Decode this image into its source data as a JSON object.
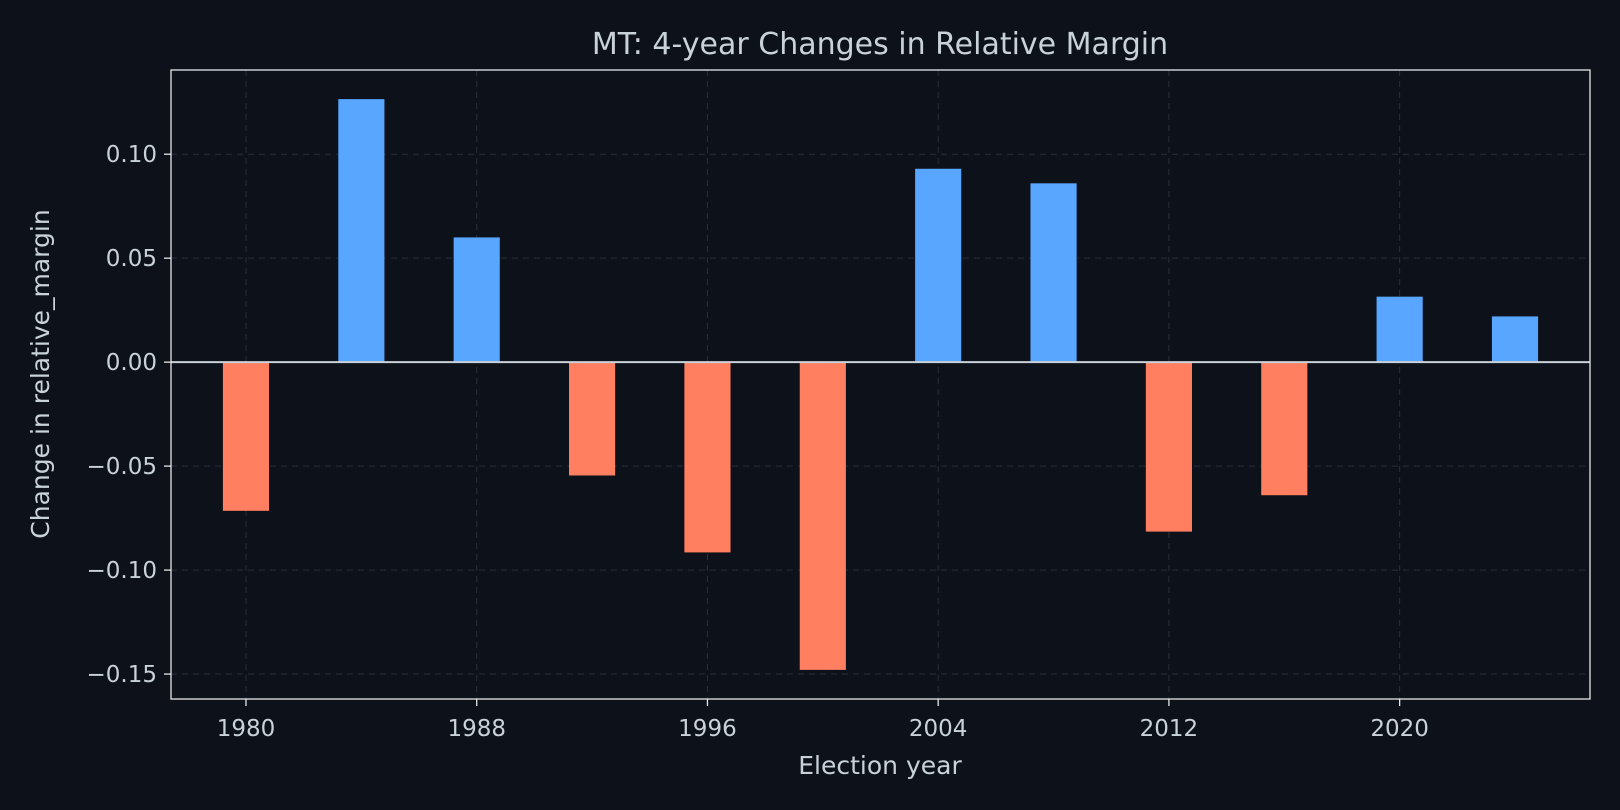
{
  "chart_data": {
    "type": "bar",
    "title": "MT: 4-year Changes in Relative Margin",
    "xlabel": "Election year",
    "ylabel": "Change in relative_margin",
    "x": [
      1980,
      1984,
      1988,
      1992,
      1996,
      2000,
      2004,
      2008,
      2012,
      2016,
      2020,
      2024
    ],
    "values": [
      -0.0715,
      0.1265,
      0.06,
      -0.0545,
      -0.0915,
      -0.148,
      0.093,
      0.086,
      -0.0815,
      -0.064,
      0.0315,
      0.022
    ],
    "xlim": [
      1977.4,
      2026.6
    ],
    "ylim": [
      -0.162,
      0.1405
    ],
    "xticks": [
      1980,
      1988,
      1996,
      2004,
      2012,
      2020
    ],
    "yticks": [
      0.1,
      0.05,
      0.0,
      -0.05,
      -0.1,
      -0.15
    ],
    "ytick_labels": [
      "0.10",
      "0.05",
      "0.00",
      "−0.05",
      "−0.10",
      "−0.15"
    ],
    "grid": true,
    "colors": {
      "background": "#0d111a",
      "positive": "#58a6ff",
      "negative": "#ff7f60",
      "text": "#c9d1d9",
      "frame": "#e6e6e6",
      "grid": "#2a2f3a",
      "zero_line": "#c9d1d9"
    }
  }
}
